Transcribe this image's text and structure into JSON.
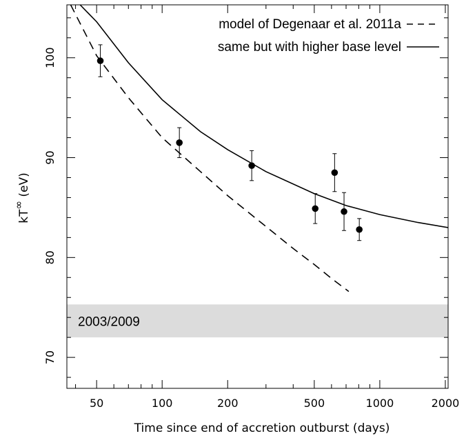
{
  "chart_data": {
    "type": "scatter",
    "x_scale": "log",
    "xlim": [
      36.5,
      2060
    ],
    "ylim": [
      66.9,
      105.3
    ],
    "xlabel": "Time since end of accretion outburst (days)",
    "ylabel_base": "kT",
    "ylabel_sup": "∞",
    "ylabel_unit": "(eV)",
    "x_ticks": [
      50,
      100,
      200,
      500,
      1000,
      2000
    ],
    "x_tick_labels": [
      "50",
      "100",
      "200",
      "500",
      "1000",
      "2000"
    ],
    "y_ticks": [
      70,
      80,
      90,
      100
    ],
    "y_tick_labels": [
      "70",
      "80",
      "90",
      "100"
    ],
    "grid": false,
    "legend_position": "top-right",
    "series": [
      {
        "name": "data",
        "kind": "points_with_errors",
        "points": [
          {
            "x": 52,
            "y": 99.7,
            "err": 1.6
          },
          {
            "x": 120,
            "y": 91.5,
            "err": 1.5
          },
          {
            "x": 258,
            "y": 89.2,
            "err": 1.5
          },
          {
            "x": 505,
            "y": 84.9,
            "err": 1.5
          },
          {
            "x": 620,
            "y": 88.5,
            "err": 1.9
          },
          {
            "x": 685,
            "y": 84.6,
            "err": 1.9
          },
          {
            "x": 805,
            "y": 82.8,
            "err": 1.1
          }
        ]
      },
      {
        "name": "model of Degenaar et al. 2011a",
        "kind": "dashed_line",
        "points": [
          [
            38,
            105.3
          ],
          [
            50,
            100.2
          ],
          [
            70,
            96.0
          ],
          [
            100,
            92.0
          ],
          [
            150,
            88.6
          ],
          [
            200,
            86.2
          ],
          [
            300,
            83.1
          ],
          [
            400,
            80.9
          ],
          [
            500,
            79.3
          ],
          [
            600,
            77.9
          ],
          [
            720,
            76.6
          ]
        ]
      },
      {
        "name": "same but with higher base level",
        "kind": "solid_line",
        "points": [
          [
            42,
            105.3
          ],
          [
            50,
            103.6
          ],
          [
            70,
            99.5
          ],
          [
            100,
            95.8
          ],
          [
            150,
            92.6
          ],
          [
            200,
            90.8
          ],
          [
            300,
            88.6
          ],
          [
            500,
            86.4
          ],
          [
            700,
            85.2
          ],
          [
            1000,
            84.3
          ],
          [
            1500,
            83.5
          ],
          [
            2060,
            83.0
          ]
        ]
      }
    ],
    "band": {
      "label": "2003/2009",
      "y_min": 72.0,
      "y_max": 75.3,
      "color": "#dcdcdc"
    },
    "legend": [
      {
        "label": "model of Degenaar et al. 2011a",
        "style": "dashed"
      },
      {
        "label": "same but with higher base level",
        "style": "solid"
      }
    ]
  }
}
